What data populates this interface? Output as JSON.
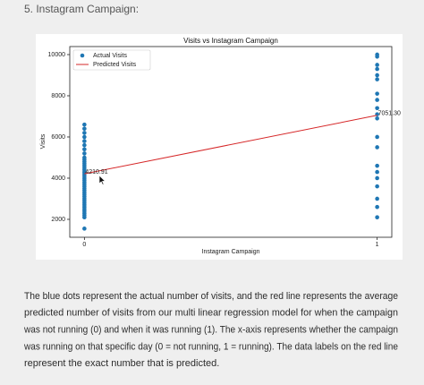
{
  "heading": "5. Instagram Campaign:",
  "chart_data": {
    "type": "scatter",
    "title": "Visits vs Instagram Campaign",
    "x_label": "Instagram Campaign",
    "y_label": "Visits",
    "xlim": [
      -0.05,
      1.05
    ],
    "xticks": [
      0,
      1
    ],
    "ylim": [
      1130,
      10390
    ],
    "yticks": [
      2000,
      4000,
      6000,
      8000,
      10000
    ],
    "legend": "upper-left",
    "series": [
      {
        "name": "Actual Visits",
        "type": "scatter",
        "color": "#1f77b4",
        "x": [
          0,
          0,
          0,
          0,
          0,
          0,
          0,
          0,
          0,
          0,
          0,
          0,
          0,
          0,
          0,
          0,
          0,
          0,
          0,
          0,
          0,
          0,
          0,
          0,
          0,
          0,
          0,
          0,
          0,
          0,
          0,
          0,
          0,
          0,
          0,
          0,
          0,
          0,
          0,
          1,
          1,
          1,
          1,
          1,
          1,
          1,
          1,
          1,
          1,
          1,
          1,
          1,
          1,
          1,
          1,
          1,
          1,
          1,
          1
        ],
        "values": [
          1550,
          2100,
          2200,
          2300,
          2400,
          2500,
          2600,
          2700,
          2800,
          2900,
          3000,
          3100,
          3200,
          3300,
          3400,
          3500,
          3600,
          3700,
          3800,
          3900,
          4000,
          4100,
          4200,
          4300,
          4400,
          4500,
          4600,
          4700,
          4800,
          4900,
          5000,
          5200,
          5400,
          5600,
          5800,
          6000,
          6200,
          6400,
          6600,
          2100,
          2600,
          3000,
          3600,
          4000,
          4300,
          4600,
          5500,
          6000,
          6900,
          7100,
          7400,
          7800,
          8100,
          8800,
          9000,
          9300,
          9500,
          9900,
          10000
        ]
      },
      {
        "name": "Predicted Visits",
        "type": "line",
        "color": "#d62728",
        "x": [
          0,
          1
        ],
        "values": [
          4210.91,
          7051.3
        ],
        "value_labels": [
          "4210.91",
          "7051.30"
        ]
      }
    ]
  },
  "paragraph": {
    "lines": [
      "The blue dots represent the actual number of visits, and the red line represents the average",
      "predicted number of visits from our multi linear regression model for when the campaign",
      "was not running (0) and when it was running (1). The x-axis represents whether the campaign",
      "was running on that specific day (0 = not running, 1 = running). The data labels on the red line",
      "represent the exact number that is predicted."
    ]
  }
}
